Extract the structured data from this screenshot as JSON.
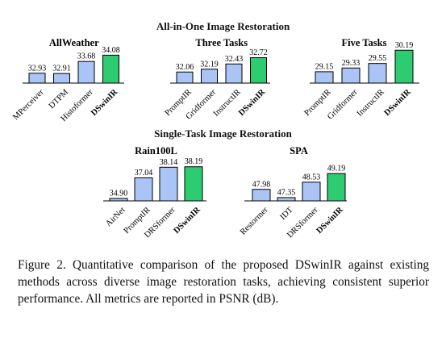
{
  "headings": {
    "top": "All-in-One Image Restoration",
    "bottom": "Single-Task Image Restoration"
  },
  "caption": "Figure 2.  Quantitative comparison of the proposed DSwinIR against existing methods across diverse image restoration tasks, achieving consistent superior performance.  All metrics are reported in PSNR (dB).",
  "colors": {
    "baseline": "#a9c4f5",
    "ours": "#2ecc71",
    "outline": "#000000"
  },
  "chart_data": [
    {
      "type": "bar",
      "title": "AllWeather",
      "categories": [
        "MPerceiver",
        "DTPM",
        "Histoformer",
        "DSwinIR"
      ],
      "values": [
        32.93,
        32.91,
        33.68,
        34.08
      ],
      "ylim": [
        32.3,
        34.1
      ],
      "highlight": "DSwinIR"
    },
    {
      "type": "bar",
      "title": "Three Tasks",
      "categories": [
        "PromptIR",
        "Gridformer",
        "InstructIR",
        "DSwinIR"
      ],
      "values": [
        32.06,
        32.19,
        32.43,
        32.72
      ],
      "ylim": [
        31.55,
        32.85
      ],
      "highlight": "DSwinIR"
    },
    {
      "type": "bar",
      "title": "Five Tasks",
      "categories": [
        "PromptIR",
        "Gridformer",
        "InstructIR",
        "DSwinIR"
      ],
      "values": [
        29.15,
        29.33,
        29.55,
        30.19
      ],
      "ylim": [
        28.6,
        30.2
      ],
      "highlight": "DSwinIR"
    },
    {
      "type": "bar",
      "title": "Rain100L",
      "categories": [
        "AirNet",
        "PromptIR",
        "DRSformer",
        "DSwinIR"
      ],
      "values": [
        34.9,
        37.04,
        38.14,
        38.19
      ],
      "ylim": [
        34.65,
        38.25
      ],
      "highlight": "DSwinIR"
    },
    {
      "type": "bar",
      "title": "SPA",
      "categories": [
        "Restormer",
        "IDT",
        "DRSformer",
        "DSwinIR"
      ],
      "values": [
        47.98,
        47.35,
        48.53,
        49.19
      ],
      "ylim": [
        47.1,
        49.2
      ],
      "highlight": "DSwinIR"
    }
  ]
}
